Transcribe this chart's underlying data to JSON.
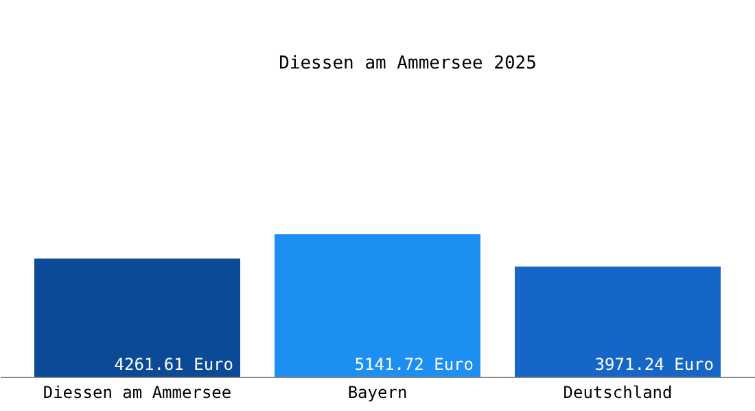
{
  "chart_data": {
    "type": "bar",
    "title": "Diessen am Ammersee 2025",
    "categories": [
      "Diessen am Ammersee",
      "Bayern",
      "Deutschland"
    ],
    "values": [
      4261.61,
      5141.72,
      3971.24
    ],
    "colors": [
      "#0a4a97",
      "#1e8ff2",
      "#1566c6"
    ],
    "value_labels": [
      "4261.61 Euro",
      "5141.72 Euro",
      "3971.24 Euro"
    ]
  }
}
